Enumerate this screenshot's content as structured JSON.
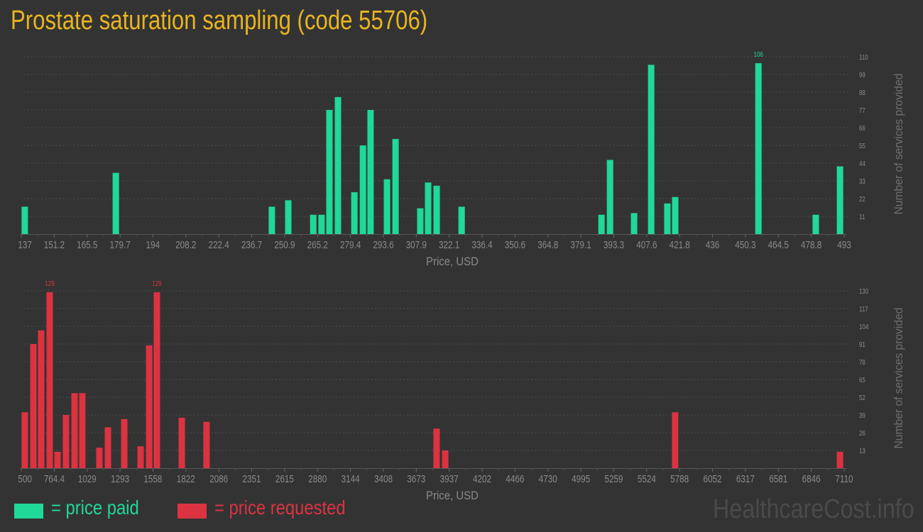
{
  "title": "Prostate saturation sampling (code 55706)",
  "colors": {
    "background": "#333333",
    "paid": "#20d898",
    "requested": "#dc3341",
    "title": "#e8b51f",
    "axis_text": "#8a8a8a"
  },
  "legend": [
    {
      "label": "= price paid",
      "color": "#20d898"
    },
    {
      "label": "= price requested",
      "color": "#dc3341"
    }
  ],
  "watermark": "HealthcareCost.info",
  "chart_data": [
    {
      "type": "bar",
      "series_name": "price paid",
      "xlabel": "Price, USD",
      "ylabel": "Number of services provided",
      "xlim": [
        137,
        493
      ],
      "ylim": [
        0,
        110
      ],
      "grid": true,
      "x_ticks": [
        "137",
        "151.2",
        "165.5",
        "179.7",
        "194",
        "208.2",
        "222.4",
        "236.7",
        "250.9",
        "265.2",
        "279.4",
        "293.6",
        "307.9",
        "322.1",
        "336.4",
        "350.6",
        "364.8",
        "379.1",
        "393.3",
        "407.6",
        "421.8",
        "436",
        "450.3",
        "464.5",
        "478.8",
        "493"
      ],
      "y_ticks": [
        "11",
        "22",
        "33",
        "44",
        "55",
        "66",
        "77",
        "88",
        "99",
        "110"
      ],
      "max_label": "106",
      "bars": [
        {
          "x": 138.5,
          "y": 17
        },
        {
          "x": 177.9,
          "y": 38
        },
        {
          "x": 245.4,
          "y": 17
        },
        {
          "x": 252.5,
          "y": 21
        },
        {
          "x": 263.3,
          "y": 12
        },
        {
          "x": 266.9,
          "y": 12
        },
        {
          "x": 270.3,
          "y": 77
        },
        {
          "x": 274.0,
          "y": 85
        },
        {
          "x": 281.1,
          "y": 26
        },
        {
          "x": 284.8,
          "y": 55
        },
        {
          "x": 288.1,
          "y": 77
        },
        {
          "x": 295.2,
          "y": 34
        },
        {
          "x": 298.9,
          "y": 59
        },
        {
          "x": 309.6,
          "y": 16
        },
        {
          "x": 313.0,
          "y": 32
        },
        {
          "x": 316.7,
          "y": 30
        },
        {
          "x": 327.5,
          "y": 17
        },
        {
          "x": 388.0,
          "y": 12
        },
        {
          "x": 391.7,
          "y": 46
        },
        {
          "x": 402.1,
          "y": 13
        },
        {
          "x": 409.5,
          "y": 105
        },
        {
          "x": 416.5,
          "y": 19
        },
        {
          "x": 419.9,
          "y": 23
        },
        {
          "x": 455.9,
          "y": 106
        },
        {
          "x": 480.7,
          "y": 12
        },
        {
          "x": 491.2,
          "y": 42
        }
      ]
    },
    {
      "type": "bar",
      "series_name": "price requested",
      "xlabel": "Price, USD",
      "ylabel": "Number of services provided",
      "xlim": [
        500,
        7110
      ],
      "ylim": [
        0,
        130
      ],
      "grid": true,
      "x_ticks": [
        "500",
        "764.4",
        "1029",
        "1293",
        "1558",
        "1822",
        "2086",
        "2351",
        "2615",
        "2880",
        "3144",
        "3408",
        "3673",
        "3937",
        "4202",
        "4466",
        "4730",
        "4995",
        "5259",
        "5524",
        "5788",
        "6052",
        "6317",
        "6581",
        "6846",
        "7110"
      ],
      "y_ticks": [
        "13",
        "26",
        "39",
        "52",
        "65",
        "78",
        "91",
        "104",
        "117",
        "130"
      ],
      "max_label": "129",
      "bars": [
        {
          "x": 528,
          "y": 41
        },
        {
          "x": 597,
          "y": 91
        },
        {
          "x": 660,
          "y": 101
        },
        {
          "x": 728,
          "y": 129
        },
        {
          "x": 791,
          "y": 12
        },
        {
          "x": 859,
          "y": 39
        },
        {
          "x": 928,
          "y": 55
        },
        {
          "x": 990,
          "y": 55
        },
        {
          "x": 1127,
          "y": 15
        },
        {
          "x": 1196,
          "y": 30
        },
        {
          "x": 1327,
          "y": 36
        },
        {
          "x": 1458,
          "y": 16
        },
        {
          "x": 1527,
          "y": 90
        },
        {
          "x": 1589,
          "y": 129
        },
        {
          "x": 1789,
          "y": 37
        },
        {
          "x": 1988,
          "y": 34
        },
        {
          "x": 3836,
          "y": 29
        },
        {
          "x": 3905,
          "y": 13
        },
        {
          "x": 5752,
          "y": 41
        },
        {
          "x": 7076,
          "y": 12
        }
      ]
    }
  ]
}
